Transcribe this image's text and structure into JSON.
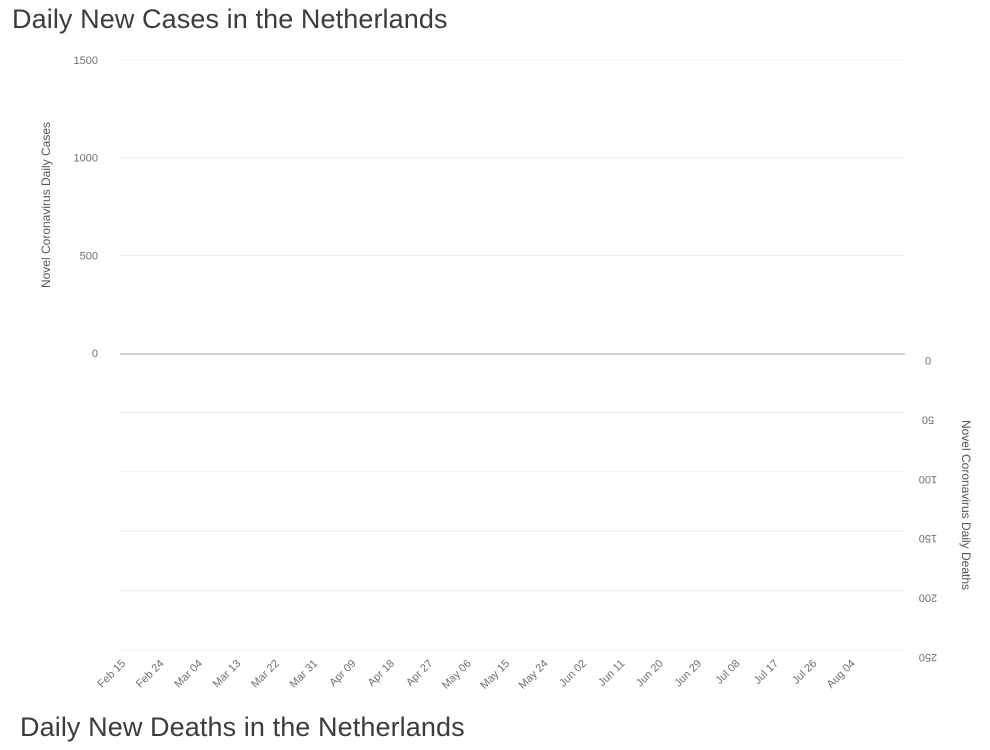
{
  "titles": {
    "top": "Daily New Cases in the Netherlands",
    "bottom": "Daily New Deaths in the Netherlands"
  },
  "colors": {
    "bar": "#c4c4c4",
    "grid": "#ececec",
    "baseline": "#d0d0d0",
    "text": "#707070"
  },
  "chart_data": {
    "type": "bar",
    "x_tick_labels": [
      "Feb 15",
      "Feb 24",
      "Mar 04",
      "Mar 13",
      "Mar 22",
      "Mar 31",
      "Apr 09",
      "Apr 18",
      "Apr 27",
      "May 06",
      "May 15",
      "May 24",
      "Jun 02",
      "Jun 11",
      "Jun 20",
      "Jun 29",
      "Jul 08",
      "Jul 17",
      "Jul 26",
      "Aug 04"
    ],
    "x_tick_step_days": 9,
    "cases": {
      "ylabel": "Novel Coronavirus Daily Cases",
      "ylim": [
        0,
        1500
      ],
      "ticks": [
        0,
        500,
        1000,
        1500
      ],
      "values": [
        0,
        0,
        0,
        0,
        0,
        0,
        0,
        0,
        0,
        0,
        0,
        0,
        0,
        0,
        0,
        0,
        0,
        0,
        0,
        0,
        0,
        0,
        0,
        0,
        0,
        0,
        0,
        0,
        0,
        0,
        0,
        0,
        0,
        0,
        0,
        0,
        0,
        0,
        0,
        0,
        0,
        0,
        0,
        0,
        0,
        0,
        0,
        0,
        0,
        0,
        0,
        0,
        0,
        0,
        0,
        0,
        0,
        0,
        0,
        0,
        0,
        0,
        0,
        0,
        0,
        0,
        0,
        0,
        0,
        0,
        0,
        0,
        0,
        0,
        0,
        0,
        0,
        0,
        0,
        0,
        0,
        0,
        0,
        0,
        0,
        0,
        0,
        0,
        0,
        0,
        0,
        0,
        0,
        0,
        0,
        0,
        0,
        0,
        0,
        0,
        0,
        0,
        0,
        0,
        0,
        0,
        0,
        0,
        0,
        0,
        0,
        0,
        0,
        0,
        0,
        0,
        0,
        0,
        0,
        0,
        0,
        0,
        0,
        0,
        0,
        0,
        0,
        0,
        0,
        0,
        0,
        0,
        0,
        0,
        0,
        0,
        0,
        0,
        0,
        0,
        0,
        0,
        0,
        0,
        0,
        0,
        0,
        0,
        0,
        0,
        0,
        0,
        0,
        0,
        0,
        0,
        0,
        0,
        0,
        0,
        0,
        0,
        0,
        0,
        0,
        0,
        0,
        0,
        0,
        0,
        0,
        0,
        0,
        0,
        0,
        0,
        0,
        0,
        0,
        0,
        0,
        0,
        0,
        0
      ]
    },
    "deaths": {
      "ylabel": "Novel Coronavirus Daily Deaths",
      "ylim": [
        0,
        250
      ],
      "ticks": [
        0,
        50,
        100,
        150,
        200,
        250
      ],
      "values": [
        0,
        0,
        0,
        0,
        0,
        0,
        0,
        0,
        0,
        0,
        0,
        0,
        0,
        0,
        0,
        0,
        0,
        0,
        0,
        0,
        0,
        0,
        0,
        0,
        0,
        0,
        0,
        0,
        0,
        0,
        0,
        0,
        0,
        0,
        0,
        0,
        0,
        0,
        0,
        0,
        0,
        0,
        0,
        0,
        0,
        0,
        0,
        0,
        0,
        0,
        0,
        0,
        0,
        0,
        0,
        0,
        0,
        0,
        0,
        0,
        0,
        0,
        0,
        0,
        0,
        0,
        0,
        0,
        0,
        0,
        0,
        0,
        0,
        0,
        0,
        0,
        0,
        0,
        0,
        0,
        0,
        0,
        0,
        0,
        0,
        0,
        0,
        0,
        0,
        0,
        0,
        0,
        0,
        0,
        0,
        0,
        0,
        0,
        0,
        0,
        0,
        0,
        0,
        0,
        0,
        0,
        0,
        0,
        0,
        0,
        0,
        0,
        0,
        0,
        0,
        0,
        0,
        0,
        0,
        0,
        0,
        0,
        0,
        0,
        0,
        0,
        0,
        0,
        0,
        0,
        0,
        0,
        0,
        0,
        0,
        0,
        0,
        0,
        0,
        0,
        0,
        0,
        0,
        0,
        0,
        0,
        0,
        0,
        0,
        0,
        0,
        0,
        0,
        0,
        0,
        0,
        0,
        0,
        0,
        0,
        0,
        0,
        0,
        0,
        0,
        0,
        0,
        0,
        0,
        0,
        0,
        0,
        0,
        0,
        0,
        0,
        0,
        0,
        0,
        0,
        0,
        0,
        0,
        0
      ]
    }
  }
}
